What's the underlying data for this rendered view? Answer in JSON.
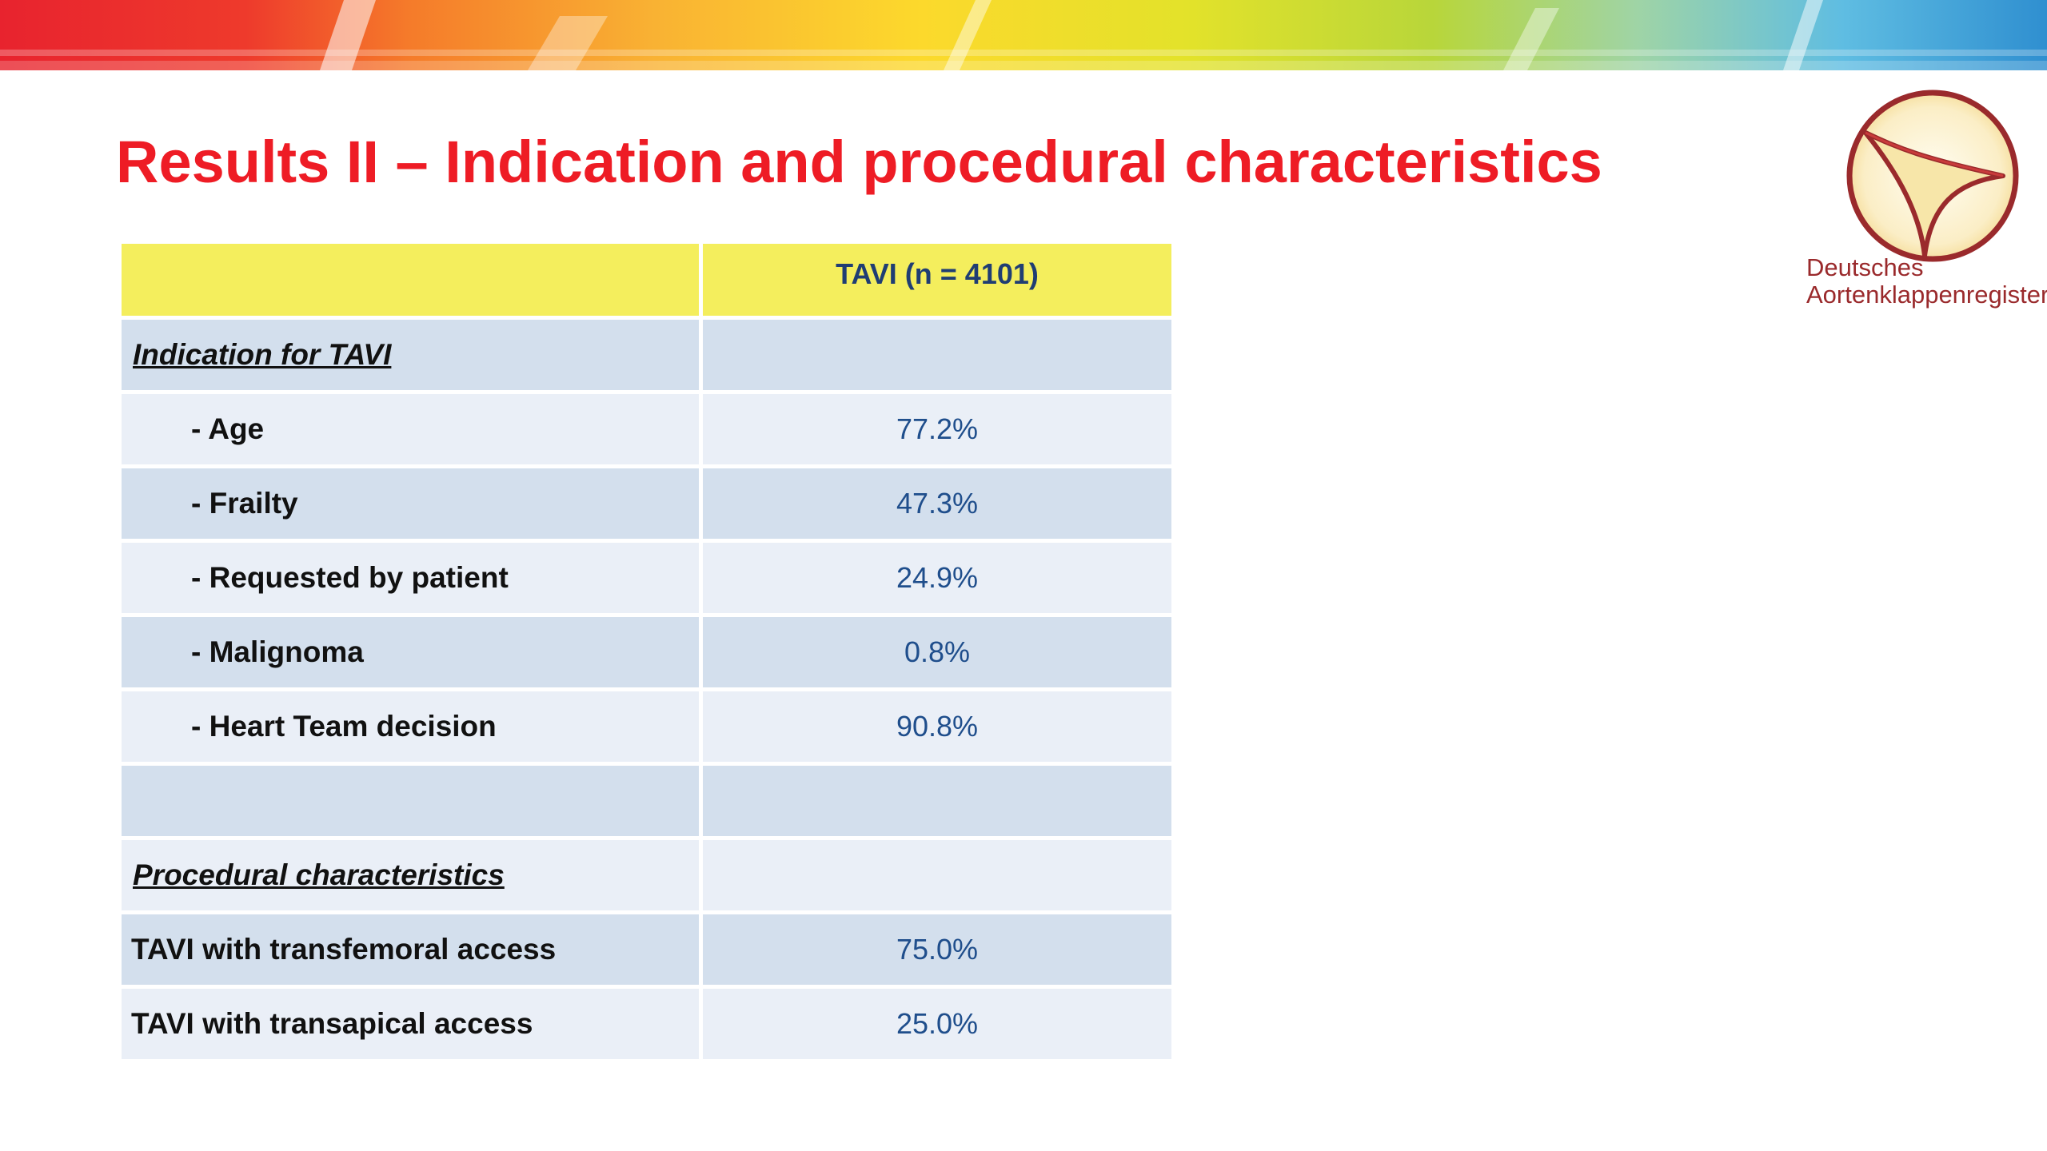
{
  "slide": {
    "title": "Results II – Indication and procedural characteristics"
  },
  "logo": {
    "line1": "Deutsches",
    "line2": "Aortenklappenregister"
  },
  "table": {
    "header": {
      "label": "",
      "value": "TAVI (n = 4101)"
    },
    "indication_section": "Indication for TAVI",
    "indication_rows": [
      {
        "label": "- Age",
        "value": "77.2%"
      },
      {
        "label": "- Frailty",
        "value": "47.3%"
      },
      {
        "label": "- Requested by patient",
        "value": "24.9%"
      },
      {
        "label": "- Malignoma",
        "value": "0.8%"
      },
      {
        "label": "- Heart Team decision",
        "value": "90.8%"
      }
    ],
    "procedural_section": "Procedural characteristics",
    "procedural_rows": [
      {
        "label": "TAVI with transfemoral access",
        "value": "75.0%"
      },
      {
        "label": "TAVI with transapical access",
        "value": "25.0%"
      }
    ]
  },
  "colors": {
    "title": "#ee1c25",
    "header_bg": "#f4ee5d",
    "row_dark": "#d3dfed",
    "row_light": "#eaeff7",
    "value_text": "#1f4e8c",
    "logo": "#9a2a2c"
  }
}
